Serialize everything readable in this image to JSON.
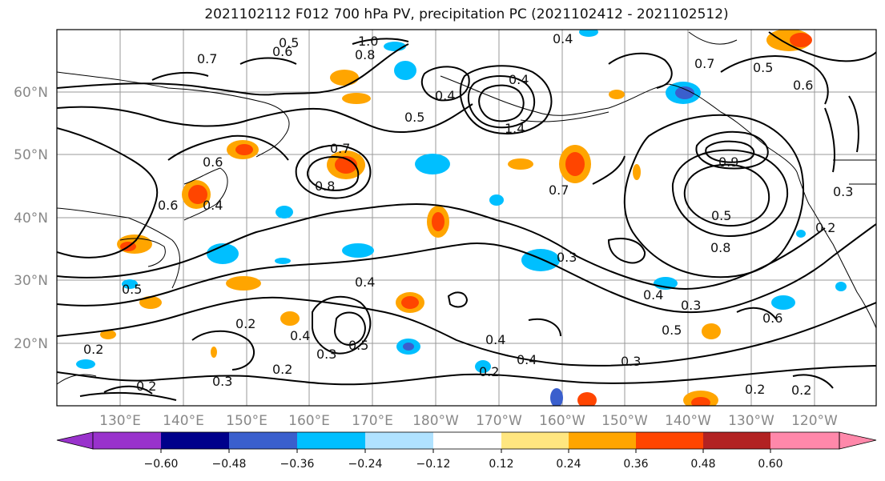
{
  "title": "2021102112 F012 700 hPa PV, precipitation PC (2021102412 - 2021102512)",
  "lat_labels": [
    "60°N",
    "50°N",
    "40°N",
    "30°N",
    "20°N"
  ],
  "lon_labels": [
    "130°E",
    "140°E",
    "150°E",
    "160°E",
    "170°E",
    "180°W",
    "170°W",
    "160°W",
    "150°W",
    "140°W",
    "130°W",
    "120°W"
  ],
  "contour_labels": [
    "0.7",
    "0.5",
    "0.6",
    "1.0",
    "0.8",
    "0.4",
    "0.5",
    "0.4",
    "1.4",
    "0.4",
    "0.7",
    "0.6",
    "0.5",
    "0.6",
    "0.7",
    "0.8",
    "0.7",
    "0.6",
    "0.4",
    "0.3",
    "0.5",
    "0.8",
    "0.9",
    "0.2",
    "0.5",
    "0.4",
    "0.3",
    "0.4",
    "0.3",
    "0.5",
    "0.6",
    "0.2",
    "0.4",
    "0.2",
    "0.3",
    "0.5",
    "0.4",
    "0.2",
    "0.2",
    "0.3",
    "0.2",
    "0.4",
    "0.3",
    "0.2",
    "0.2"
  ],
  "colorbar": {
    "ticks": [
      "−0.60",
      "−0.48",
      "−0.36",
      "−0.24",
      "−0.12",
      "0.12",
      "0.24",
      "0.36",
      "0.48",
      "0.60"
    ],
    "colors": [
      "#9932CC",
      "#00008B",
      "#3A5FCD",
      "#00BFFF",
      "#B0E2FF",
      "#FFFFFF",
      "#FFE680",
      "#FFA500",
      "#FF4500",
      "#B22222",
      "#FF88AA"
    ]
  }
}
